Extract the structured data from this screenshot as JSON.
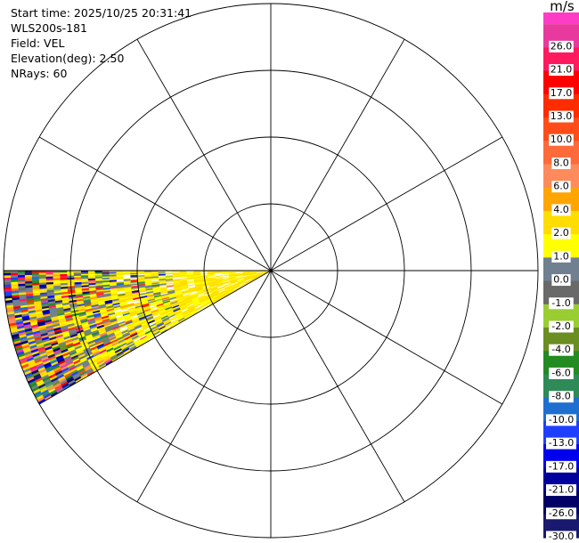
{
  "info": {
    "start_time": "Start time: 2025/10/25 20:31:41",
    "instrument": "WLS200s-181",
    "field": "Field: VEL",
    "elevation": "Elevation(deg): 2.50",
    "nrays": "NRays: 60"
  },
  "colorbar": {
    "unit": "m/s",
    "ticks": [
      "26.0",
      "21.0",
      "17.0",
      "13.0",
      "10.0",
      "8.0",
      "6.0",
      "4.0",
      "2.0",
      "1.0",
      "0.0",
      "-1.0",
      "-2.0",
      "-4.0",
      "-6.0",
      "-8.0",
      "-10.0",
      "-13.0",
      "-17.0",
      "-21.0",
      "-26.0",
      "-30.0"
    ],
    "colors": [
      "#e83a9e",
      "#ff1a60",
      "#ff0000",
      "#ff2c00",
      "#ff4c18",
      "#ff6a3a",
      "#ff8a5c",
      "#ffa500",
      "#ffdd00",
      "#ffff00",
      "#708090",
      "#696969",
      "#9acd32",
      "#6b8e23",
      "#228b22",
      "#2e8b57",
      "#1e6fd0",
      "#1f3fff",
      "#0000ee",
      "#00009e",
      "#000066",
      "#191970"
    ],
    "top_color": "#ff3cc6",
    "bottom_color": "#191970"
  },
  "chart_data": {
    "type": "ppi",
    "field": "VEL",
    "unit": "m/s",
    "elevation_deg": 2.5,
    "nrays": 60,
    "range_rings": 4,
    "spokes_deg": [
      0,
      30,
      60,
      90,
      120,
      150,
      180,
      210,
      240,
      270,
      300,
      330
    ],
    "sector_azimuth_deg": [
      240,
      270
    ],
    "data_region": "western sector; mostly 1.0 to 2.0 m/s (yellow) near the radar, noisy mixed velocities at far range",
    "dominant_value": "1.0 to 2.0",
    "grid": true
  }
}
